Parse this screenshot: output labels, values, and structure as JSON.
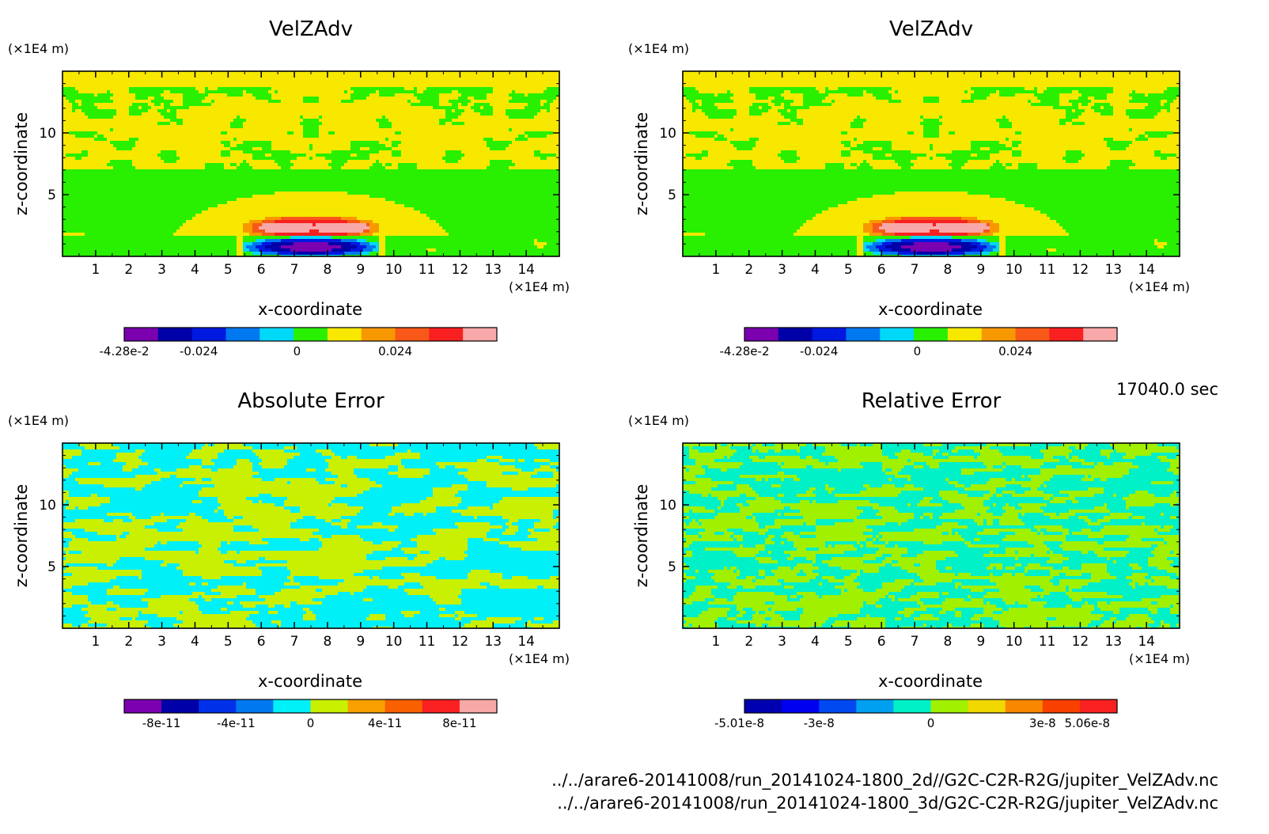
{
  "footer": {
    "time": "17040.0 sec",
    "file1": "../../arare6-20141008/run_20141024-1800_2d//G2C-C2R-R2G/jupiter_VelZAdv.nc",
    "file2": "../../arare6-20141008/run_20141024-1800_3d/G2C-C2R-R2G/jupiter_VelZAdv.nc"
  },
  "chart_data": [
    {
      "type": "heatmap",
      "title": "VelZAdv",
      "xlabel": "x-coordinate",
      "ylabel": "z-coordinate",
      "x_unit": "(×1E4 m)",
      "y_unit": "(×1E4 m)",
      "xlim": [
        0,
        15
      ],
      "ylim": [
        0,
        15
      ],
      "x_ticks": [
        1,
        2,
        3,
        4,
        5,
        6,
        7,
        8,
        9,
        10,
        11,
        12,
        13,
        14
      ],
      "y_ticks": [
        5,
        10
      ],
      "colorbar": {
        "colors": [
          "#7a00b0",
          "#0000a8",
          "#0018e0",
          "#0078f0",
          "#00d8f8",
          "#28f000",
          "#f8e800",
          "#f89800",
          "#f85818",
          "#f82020",
          "#f8a8a8"
        ],
        "tick_labels": [
          "-4.28e-2",
          "-0.024",
          "0",
          "0.024"
        ]
      },
      "field": "velzadv"
    },
    {
      "type": "heatmap",
      "title": "VelZAdv",
      "xlabel": "x-coordinate",
      "ylabel": "z-coordinate",
      "x_unit": "(×1E4 m)",
      "y_unit": "(×1E4 m)",
      "xlim": [
        0,
        15
      ],
      "ylim": [
        0,
        15
      ],
      "x_ticks": [
        1,
        2,
        3,
        4,
        5,
        6,
        7,
        8,
        9,
        10,
        11,
        12,
        13,
        14
      ],
      "y_ticks": [
        5,
        10
      ],
      "colorbar": {
        "colors": [
          "#7a00b0",
          "#0000a8",
          "#0018e0",
          "#0078f0",
          "#00d8f8",
          "#28f000",
          "#f8e800",
          "#f89800",
          "#f85818",
          "#f82020",
          "#f8a8a8"
        ],
        "tick_labels": [
          "-4.28e-2",
          "-0.024",
          "0",
          "0.024"
        ]
      },
      "field": "velzadv"
    },
    {
      "type": "heatmap",
      "title": "Absolute Error",
      "xlabel": "x-coordinate",
      "ylabel": "z-coordinate",
      "x_unit": "(×1E4 m)",
      "y_unit": "(×1E4 m)",
      "xlim": [
        0,
        15
      ],
      "ylim": [
        0,
        15
      ],
      "x_ticks": [
        1,
        2,
        3,
        4,
        5,
        6,
        7,
        8,
        9,
        10,
        11,
        12,
        13,
        14
      ],
      "y_ticks": [
        5,
        10
      ],
      "colorbar": {
        "colors": [
          "#7a00b0",
          "#0000a8",
          "#0030e8",
          "#0078f0",
          "#00f0f8",
          "#c8f000",
          "#f8a000",
          "#f86000",
          "#f82020",
          "#f8a8a8"
        ],
        "tick_labels": [
          "-8e-11",
          "-4e-11",
          "0",
          "4e-11",
          "8e-11"
        ]
      },
      "field": "abs_error"
    },
    {
      "type": "heatmap",
      "title": "Relative Error",
      "xlabel": "x-coordinate",
      "ylabel": "z-coordinate",
      "x_unit": "(×1E4 m)",
      "y_unit": "(×1E4 m)",
      "xlim": [
        0,
        15
      ],
      "ylim": [
        0,
        15
      ],
      "x_ticks": [
        1,
        2,
        3,
        4,
        5,
        6,
        7,
        8,
        9,
        10,
        11,
        12,
        13,
        14
      ],
      "y_ticks": [
        5,
        10
      ],
      "colorbar": {
        "colors": [
          "#0000b0",
          "#0000f0",
          "#0048f0",
          "#00a0f0",
          "#00f0c8",
          "#a0f000",
          "#f0d800",
          "#f88800",
          "#f84000",
          "#f82020"
        ],
        "tick_labels": [
          "-5.01e-8",
          "-3e-8",
          "0",
          "3e-8",
          "5.06e-8"
        ]
      },
      "field": "rel_error"
    }
  ]
}
